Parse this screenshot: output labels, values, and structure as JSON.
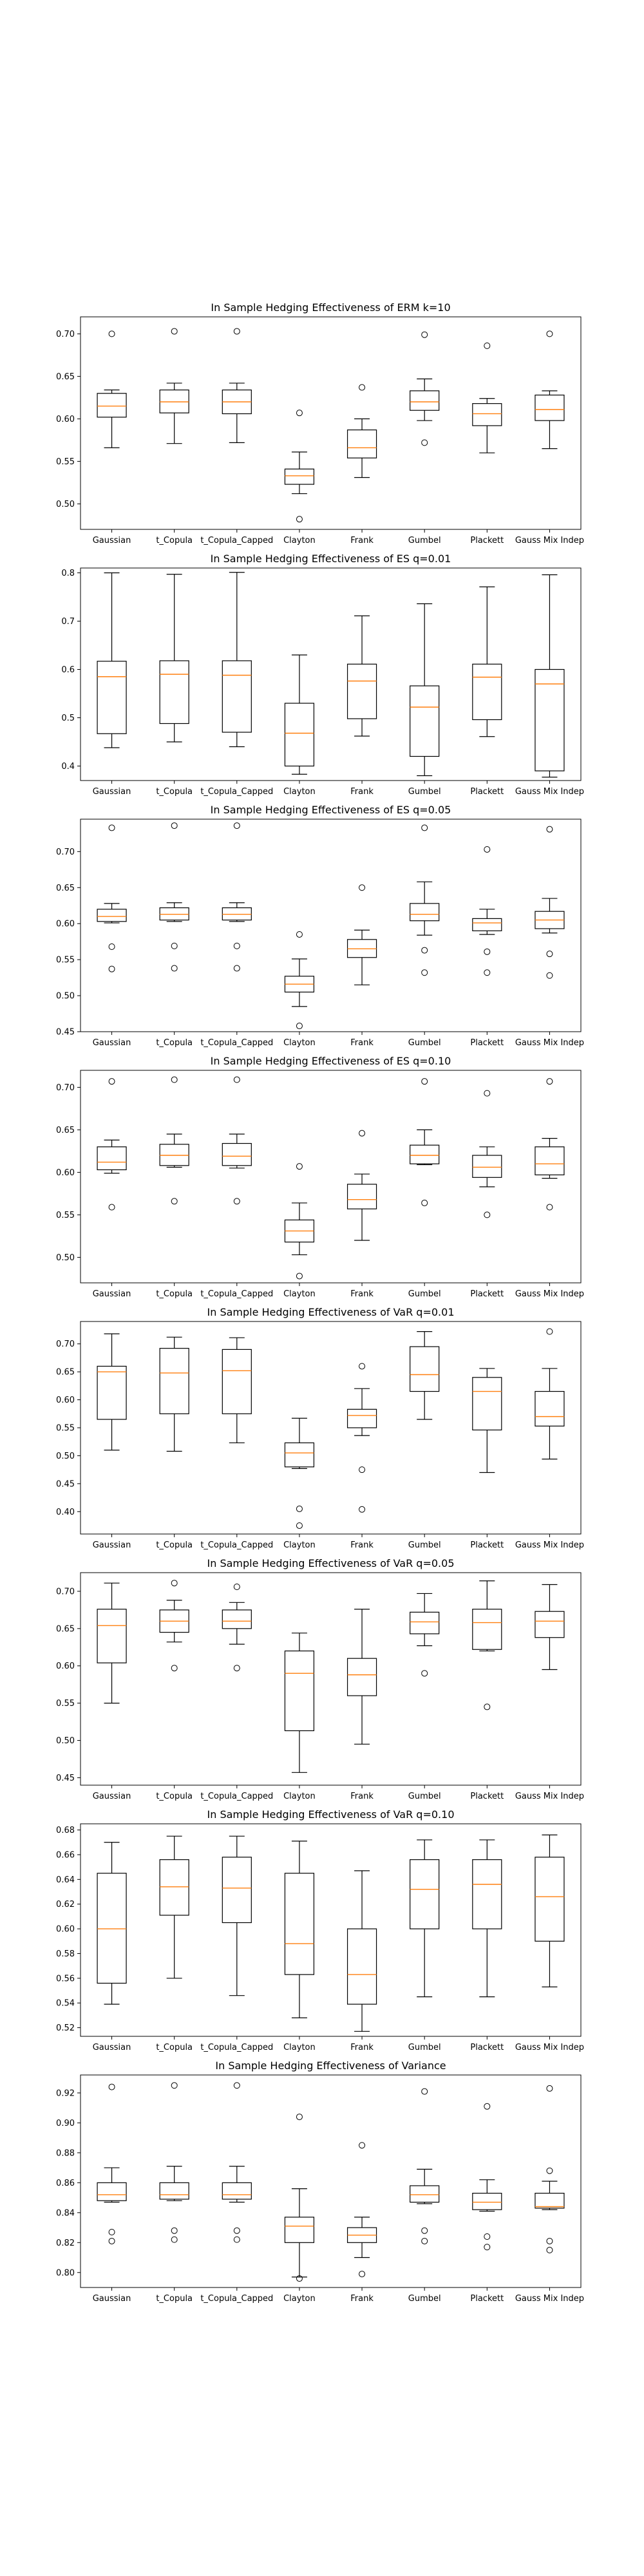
{
  "figure": {
    "categories": [
      "Gaussian",
      "t_Copula",
      "t_Copula_Capped",
      "Clayton",
      "Frank",
      "Gumbel",
      "Plackett",
      "Gauss Mix Indep"
    ],
    "colors": {
      "box": "#000000",
      "median": "#ff7f0e",
      "outlier": "#000000",
      "background": "#ffffff"
    }
  },
  "chart_data": [
    {
      "type": "box",
      "title": "In Sample Hedging Effectiveness of ERM k=10",
      "ylim": [
        0.47,
        0.72
      ],
      "yticks": [
        0.5,
        0.55,
        0.6,
        0.65,
        0.7
      ],
      "ytick_labels": [
        "0.50",
        "0.55",
        "0.60",
        "0.65",
        "0.70"
      ],
      "grid": false,
      "boxes": [
        {
          "category": "Gaussian",
          "whislo": 0.566,
          "q1": 0.602,
          "med": 0.615,
          "q3": 0.63,
          "whishi": 0.634,
          "fliers": [
            0.7
          ]
        },
        {
          "category": "t_Copula",
          "whislo": 0.571,
          "q1": 0.607,
          "med": 0.62,
          "q3": 0.634,
          "whishi": 0.642,
          "fliers": [
            0.703
          ]
        },
        {
          "category": "t_Copula_Capped",
          "whislo": 0.572,
          "q1": 0.606,
          "med": 0.62,
          "q3": 0.634,
          "whishi": 0.642,
          "fliers": [
            0.703
          ]
        },
        {
          "category": "Clayton",
          "whislo": 0.512,
          "q1": 0.523,
          "med": 0.533,
          "q3": 0.541,
          "whishi": 0.561,
          "fliers": [
            0.607,
            0.482
          ]
        },
        {
          "category": "Frank",
          "whislo": 0.531,
          "q1": 0.554,
          "med": 0.566,
          "q3": 0.587,
          "whishi": 0.6,
          "fliers": [
            0.637
          ]
        },
        {
          "category": "Gumbel",
          "whislo": 0.598,
          "q1": 0.61,
          "med": 0.62,
          "q3": 0.633,
          "whishi": 0.647,
          "fliers": [
            0.699,
            0.572
          ]
        },
        {
          "category": "Plackett",
          "whislo": 0.56,
          "q1": 0.592,
          "med": 0.606,
          "q3": 0.618,
          "whishi": 0.624,
          "fliers": [
            0.686
          ]
        },
        {
          "category": "Gauss Mix Indep",
          "whislo": 0.565,
          "q1": 0.598,
          "med": 0.611,
          "q3": 0.628,
          "whishi": 0.633,
          "fliers": [
            0.7
          ]
        }
      ]
    },
    {
      "type": "box",
      "title": "In Sample Hedging Effectiveness of ES q=0.01",
      "ylim": [
        0.37,
        0.81
      ],
      "yticks": [
        0.4,
        0.5,
        0.6,
        0.7,
        0.8
      ],
      "ytick_labels": [
        "0.4",
        "0.5",
        "0.6",
        "0.7",
        "0.8"
      ],
      "grid": false,
      "boxes": [
        {
          "category": "Gaussian",
          "whislo": 0.438,
          "q1": 0.467,
          "med": 0.585,
          "q3": 0.617,
          "whishi": 0.8,
          "fliers": []
        },
        {
          "category": "t_Copula",
          "whislo": 0.45,
          "q1": 0.488,
          "med": 0.59,
          "q3": 0.618,
          "whishi": 0.797,
          "fliers": []
        },
        {
          "category": "t_Copula_Capped",
          "whislo": 0.44,
          "q1": 0.47,
          "med": 0.588,
          "q3": 0.618,
          "whishi": 0.801,
          "fliers": []
        },
        {
          "category": "Clayton",
          "whislo": 0.383,
          "q1": 0.4,
          "med": 0.468,
          "q3": 0.53,
          "whishi": 0.63,
          "fliers": []
        },
        {
          "category": "Frank",
          "whislo": 0.462,
          "q1": 0.498,
          "med": 0.576,
          "q3": 0.611,
          "whishi": 0.711,
          "fliers": []
        },
        {
          "category": "Gumbel",
          "whislo": 0.38,
          "q1": 0.42,
          "med": 0.522,
          "q3": 0.566,
          "whishi": 0.736,
          "fliers": []
        },
        {
          "category": "Plackett",
          "whislo": 0.461,
          "q1": 0.496,
          "med": 0.584,
          "q3": 0.611,
          "whishi": 0.771,
          "fliers": []
        },
        {
          "category": "Gauss Mix Indep",
          "whislo": 0.377,
          "q1": 0.39,
          "med": 0.57,
          "q3": 0.6,
          "whishi": 0.796,
          "fliers": []
        }
      ]
    },
    {
      "type": "box",
      "title": "In Sample Hedging Effectiveness of ES q=0.05",
      "ylim": [
        0.45,
        0.745
      ],
      "yticks": [
        0.45,
        0.5,
        0.55,
        0.6,
        0.65,
        0.7
      ],
      "ytick_labels": [
        "0.45",
        "0.50",
        "0.55",
        "0.60",
        "0.65",
        "0.70"
      ],
      "grid": false,
      "boxes": [
        {
          "category": "Gaussian",
          "whislo": 0.601,
          "q1": 0.603,
          "med": 0.61,
          "q3": 0.62,
          "whishi": 0.628,
          "fliers": [
            0.733,
            0.568,
            0.537
          ]
        },
        {
          "category": "t_Copula",
          "whislo": 0.603,
          "q1": 0.605,
          "med": 0.613,
          "q3": 0.622,
          "whishi": 0.629,
          "fliers": [
            0.736,
            0.569,
            0.538
          ]
        },
        {
          "category": "t_Copula_Capped",
          "whislo": 0.603,
          "q1": 0.605,
          "med": 0.613,
          "q3": 0.622,
          "whishi": 0.629,
          "fliers": [
            0.736,
            0.569,
            0.538
          ]
        },
        {
          "category": "Clayton",
          "whislo": 0.485,
          "q1": 0.505,
          "med": 0.516,
          "q3": 0.527,
          "whishi": 0.551,
          "fliers": [
            0.585,
            0.458
          ]
        },
        {
          "category": "Frank",
          "whislo": 0.515,
          "q1": 0.553,
          "med": 0.565,
          "q3": 0.578,
          "whishi": 0.591,
          "fliers": [
            0.65
          ]
        },
        {
          "category": "Gumbel",
          "whislo": 0.584,
          "q1": 0.604,
          "med": 0.613,
          "q3": 0.628,
          "whishi": 0.658,
          "fliers": [
            0.733,
            0.563,
            0.532
          ]
        },
        {
          "category": "Plackett",
          "whislo": 0.585,
          "q1": 0.59,
          "med": 0.601,
          "q3": 0.607,
          "whishi": 0.62,
          "fliers": [
            0.703,
            0.561,
            0.532
          ]
        },
        {
          "category": "Gauss Mix Indep",
          "whislo": 0.587,
          "q1": 0.593,
          "med": 0.605,
          "q3": 0.617,
          "whishi": 0.635,
          "fliers": [
            0.731,
            0.558,
            0.528
          ]
        }
      ]
    },
    {
      "type": "box",
      "title": "In Sample Hedging Effectiveness of ES q=0.10",
      "ylim": [
        0.47,
        0.72
      ],
      "yticks": [
        0.5,
        0.55,
        0.6,
        0.65,
        0.7
      ],
      "ytick_labels": [
        "0.50",
        "0.55",
        "0.60",
        "0.65",
        "0.70"
      ],
      "grid": false,
      "boxes": [
        {
          "category": "Gaussian",
          "whislo": 0.599,
          "q1": 0.603,
          "med": 0.612,
          "q3": 0.63,
          "whishi": 0.638,
          "fliers": [
            0.707,
            0.559
          ]
        },
        {
          "category": "t_Copula",
          "whislo": 0.606,
          "q1": 0.608,
          "med": 0.62,
          "q3": 0.633,
          "whishi": 0.645,
          "fliers": [
            0.709,
            0.566
          ]
        },
        {
          "category": "t_Copula_Capped",
          "whislo": 0.605,
          "q1": 0.608,
          "med": 0.619,
          "q3": 0.634,
          "whishi": 0.645,
          "fliers": [
            0.709,
            0.566
          ]
        },
        {
          "category": "Clayton",
          "whislo": 0.503,
          "q1": 0.518,
          "med": 0.531,
          "q3": 0.544,
          "whishi": 0.564,
          "fliers": [
            0.607,
            0.478
          ]
        },
        {
          "category": "Frank",
          "whislo": 0.52,
          "q1": 0.557,
          "med": 0.568,
          "q3": 0.586,
          "whishi": 0.598,
          "fliers": [
            0.646
          ]
        },
        {
          "category": "Gumbel",
          "whislo": 0.609,
          "q1": 0.61,
          "med": 0.62,
          "q3": 0.632,
          "whishi": 0.65,
          "fliers": [
            0.707,
            0.564
          ]
        },
        {
          "category": "Plackett",
          "whislo": 0.583,
          "q1": 0.594,
          "med": 0.606,
          "q3": 0.62,
          "whishi": 0.63,
          "fliers": [
            0.693,
            0.55
          ]
        },
        {
          "category": "Gauss Mix Indep",
          "whislo": 0.593,
          "q1": 0.597,
          "med": 0.61,
          "q3": 0.63,
          "whishi": 0.64,
          "fliers": [
            0.707,
            0.559
          ]
        }
      ]
    },
    {
      "type": "box",
      "title": "In Sample Hedging Effectiveness of VaR q=0.01",
      "ylim": [
        0.36,
        0.74
      ],
      "yticks": [
        0.4,
        0.45,
        0.5,
        0.55,
        0.6,
        0.65,
        0.7
      ],
      "ytick_labels": [
        "0.40",
        "0.45",
        "0.50",
        "0.55",
        "0.60",
        "0.65",
        "0.70"
      ],
      "grid": false,
      "boxes": [
        {
          "category": "Gaussian",
          "whislo": 0.51,
          "q1": 0.565,
          "med": 0.65,
          "q3": 0.66,
          "whishi": 0.718,
          "fliers": []
        },
        {
          "category": "t_Copula",
          "whislo": 0.508,
          "q1": 0.575,
          "med": 0.648,
          "q3": 0.692,
          "whishi": 0.712,
          "fliers": []
        },
        {
          "category": "t_Copula_Capped",
          "whislo": 0.523,
          "q1": 0.575,
          "med": 0.652,
          "q3": 0.69,
          "whishi": 0.711,
          "fliers": []
        },
        {
          "category": "Clayton",
          "whislo": 0.477,
          "q1": 0.48,
          "med": 0.505,
          "q3": 0.523,
          "whishi": 0.567,
          "fliers": [
            0.405,
            0.375
          ]
        },
        {
          "category": "Frank",
          "whislo": 0.536,
          "q1": 0.55,
          "med": 0.572,
          "q3": 0.583,
          "whishi": 0.62,
          "fliers": [
            0.66,
            0.475,
            0.404
          ]
        },
        {
          "category": "Gumbel",
          "whislo": 0.565,
          "q1": 0.615,
          "med": 0.645,
          "q3": 0.695,
          "whishi": 0.722,
          "fliers": []
        },
        {
          "category": "Plackett",
          "whislo": 0.47,
          "q1": 0.546,
          "med": 0.615,
          "q3": 0.64,
          "whishi": 0.656,
          "fliers": []
        },
        {
          "category": "Gauss Mix Indep",
          "whislo": 0.494,
          "q1": 0.553,
          "med": 0.57,
          "q3": 0.615,
          "whishi": 0.656,
          "fliers": [
            0.722
          ]
        }
      ]
    },
    {
      "type": "box",
      "title": "In Sample Hedging Effectiveness of VaR q=0.05",
      "ylim": [
        0.44,
        0.725
      ],
      "yticks": [
        0.45,
        0.5,
        0.55,
        0.6,
        0.65,
        0.7
      ],
      "ytick_labels": [
        "0.45",
        "0.50",
        "0.55",
        "0.60",
        "0.65",
        "0.70"
      ],
      "grid": false,
      "boxes": [
        {
          "category": "Gaussian",
          "whislo": 0.55,
          "q1": 0.604,
          "med": 0.654,
          "q3": 0.676,
          "whishi": 0.711,
          "fliers": []
        },
        {
          "category": "t_Copula",
          "whislo": 0.632,
          "q1": 0.645,
          "med": 0.66,
          "q3": 0.675,
          "whishi": 0.688,
          "fliers": [
            0.711,
            0.597
          ]
        },
        {
          "category": "t_Copula_Capped",
          "whislo": 0.629,
          "q1": 0.65,
          "med": 0.66,
          "q3": 0.675,
          "whishi": 0.685,
          "fliers": [
            0.706,
            0.597
          ]
        },
        {
          "category": "Clayton",
          "whislo": 0.457,
          "q1": 0.513,
          "med": 0.59,
          "q3": 0.62,
          "whishi": 0.644,
          "fliers": []
        },
        {
          "category": "Frank",
          "whislo": 0.495,
          "q1": 0.56,
          "med": 0.588,
          "q3": 0.61,
          "whishi": 0.676,
          "fliers": []
        },
        {
          "category": "Gumbel",
          "whislo": 0.627,
          "q1": 0.643,
          "med": 0.659,
          "q3": 0.672,
          "whishi": 0.697,
          "fliers": [
            0.59
          ]
        },
        {
          "category": "Plackett",
          "whislo": 0.62,
          "q1": 0.622,
          "med": 0.658,
          "q3": 0.676,
          "whishi": 0.714,
          "fliers": [
            0.545
          ]
        },
        {
          "category": "Gauss Mix Indep",
          "whislo": 0.595,
          "q1": 0.638,
          "med": 0.66,
          "q3": 0.673,
          "whishi": 0.709,
          "fliers": []
        }
      ]
    },
    {
      "type": "box",
      "title": "In Sample Hedging Effectiveness of VaR q=0.10",
      "ylim": [
        0.513,
        0.685
      ],
      "yticks": [
        0.52,
        0.54,
        0.56,
        0.58,
        0.6,
        0.62,
        0.64,
        0.66,
        0.68
      ],
      "ytick_labels": [
        "0.52",
        "0.54",
        "0.56",
        "0.58",
        "0.60",
        "0.62",
        "0.64",
        "0.66",
        "0.68"
      ],
      "grid": false,
      "boxes": [
        {
          "category": "Gaussian",
          "whislo": 0.539,
          "q1": 0.556,
          "med": 0.6,
          "q3": 0.645,
          "whishi": 0.67,
          "fliers": []
        },
        {
          "category": "t_Copula",
          "whislo": 0.56,
          "q1": 0.611,
          "med": 0.634,
          "q3": 0.656,
          "whishi": 0.675,
          "fliers": []
        },
        {
          "category": "t_Copula_Capped",
          "whislo": 0.546,
          "q1": 0.605,
          "med": 0.633,
          "q3": 0.658,
          "whishi": 0.675,
          "fliers": []
        },
        {
          "category": "Clayton",
          "whislo": 0.528,
          "q1": 0.563,
          "med": 0.588,
          "q3": 0.645,
          "whishi": 0.671,
          "fliers": []
        },
        {
          "category": "Frank",
          "whislo": 0.517,
          "q1": 0.539,
          "med": 0.563,
          "q3": 0.6,
          "whishi": 0.647,
          "fliers": []
        },
        {
          "category": "Gumbel",
          "whislo": 0.545,
          "q1": 0.6,
          "med": 0.632,
          "q3": 0.656,
          "whishi": 0.672,
          "fliers": []
        },
        {
          "category": "Plackett",
          "whislo": 0.545,
          "q1": 0.6,
          "med": 0.636,
          "q3": 0.656,
          "whishi": 0.672,
          "fliers": []
        },
        {
          "category": "Gauss Mix Indep",
          "whislo": 0.553,
          "q1": 0.59,
          "med": 0.626,
          "q3": 0.658,
          "whishi": 0.676,
          "fliers": []
        }
      ]
    },
    {
      "type": "box",
      "title": "In Sample Hedging Effectiveness of Variance",
      "ylim": [
        0.79,
        0.932
      ],
      "yticks": [
        0.8,
        0.82,
        0.84,
        0.86,
        0.88,
        0.9,
        0.92
      ],
      "ytick_labels": [
        "0.80",
        "0.82",
        "0.84",
        "0.86",
        "0.88",
        "0.90",
        "0.92"
      ],
      "grid": false,
      "boxes": [
        {
          "category": "Gaussian",
          "whislo": 0.847,
          "q1": 0.848,
          "med": 0.852,
          "q3": 0.86,
          "whishi": 0.87,
          "fliers": [
            0.924,
            0.827,
            0.821
          ]
        },
        {
          "category": "t_Copula",
          "whislo": 0.848,
          "q1": 0.849,
          "med": 0.852,
          "q3": 0.86,
          "whishi": 0.871,
          "fliers": [
            0.925,
            0.828,
            0.822
          ]
        },
        {
          "category": "t_Copula_Capped",
          "whislo": 0.847,
          "q1": 0.849,
          "med": 0.852,
          "q3": 0.86,
          "whishi": 0.871,
          "fliers": [
            0.925,
            0.828,
            0.822
          ]
        },
        {
          "category": "Clayton",
          "whislo": 0.797,
          "q1": 0.82,
          "med": 0.831,
          "q3": 0.837,
          "whishi": 0.856,
          "fliers": [
            0.904,
            0.796
          ]
        },
        {
          "category": "Frank",
          "whislo": 0.81,
          "q1": 0.82,
          "med": 0.825,
          "q3": 0.83,
          "whishi": 0.837,
          "fliers": [
            0.885,
            0.799
          ]
        },
        {
          "category": "Gumbel",
          "whislo": 0.846,
          "q1": 0.847,
          "med": 0.852,
          "q3": 0.858,
          "whishi": 0.869,
          "fliers": [
            0.921,
            0.828,
            0.821
          ]
        },
        {
          "category": "Plackett",
          "whislo": 0.841,
          "q1": 0.842,
          "med": 0.847,
          "q3": 0.853,
          "whishi": 0.862,
          "fliers": [
            0.911,
            0.824,
            0.817
          ]
        },
        {
          "category": "Gauss Mix Indep",
          "whislo": 0.842,
          "q1": 0.843,
          "med": 0.844,
          "q3": 0.853,
          "whishi": 0.861,
          "fliers": [
            0.923,
            0.868,
            0.821,
            0.815
          ]
        }
      ]
    }
  ]
}
